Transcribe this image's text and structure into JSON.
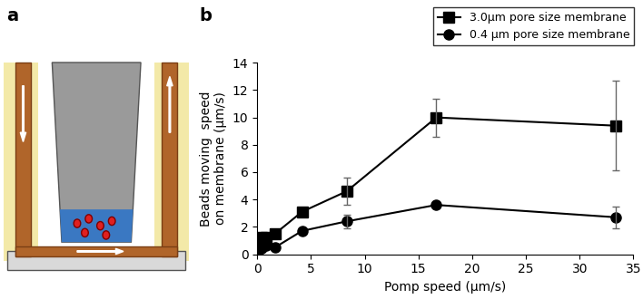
{
  "panel_labels": [
    "a",
    "b"
  ],
  "chart_data": {
    "type": "line",
    "x_label": "Pomp speed (μm/s)",
    "y_label": "Beads moving  speed\non membrane (μm/s)",
    "xlim": [
      0,
      35
    ],
    "xticks": [
      0,
      5,
      10,
      15,
      20,
      25,
      30,
      35
    ],
    "ylim": [
      0,
      14
    ],
    "yticks": [
      0,
      2,
      4,
      6,
      8,
      10,
      12,
      14
    ],
    "legend": "upper right",
    "series": [
      {
        "name": "3.0μm pore size membrane",
        "color": "#000000",
        "marker": "square",
        "line_style": "solid",
        "x": [
          0,
          0.17,
          0.42,
          0.83,
          1.67,
          4.17,
          8.33,
          16.67,
          33.33
        ],
        "values": [
          0.9,
          1.0,
          1.2,
          1.2,
          1.5,
          3.1,
          4.6,
          10.0,
          9.4
        ],
        "errors": [
          null,
          null,
          null,
          null,
          null,
          null,
          1.0,
          1.4,
          3.3
        ]
      },
      {
        "name": "0.4 μm pore size membrane",
        "color": "#000000",
        "marker": "circle",
        "line_style": "solid",
        "x": [
          0,
          0.17,
          0.42,
          0.83,
          1.67,
          4.17,
          8.33,
          16.67,
          33.33
        ],
        "values": [
          0.1,
          0.3,
          0.4,
          0.6,
          0.5,
          1.7,
          2.4,
          3.6,
          2.7
        ],
        "errors": [
          null,
          null,
          null,
          null,
          null,
          null,
          0.5,
          null,
          0.8
        ]
      }
    ]
  }
}
